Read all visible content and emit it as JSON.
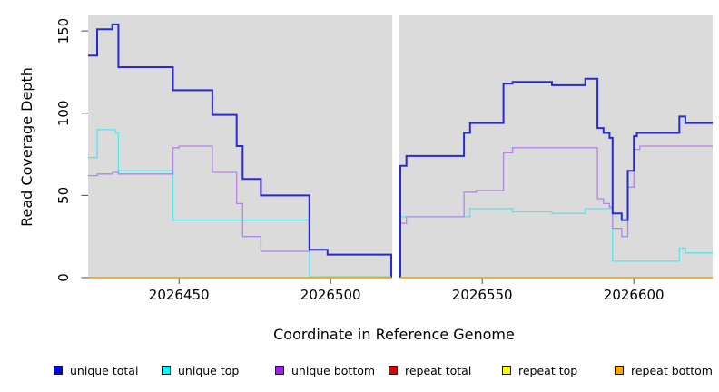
{
  "figure": {
    "x_axis_title": "Coordinate in Reference Genome",
    "y_axis_title": "Read Coverage Depth"
  },
  "chart_data": {
    "type": "line",
    "subtype": "step-after coverage plot",
    "title": "",
    "xlabel": "Coordinate in Reference Genome",
    "ylabel": "Read Coverage Depth",
    "xlim": [
      2026420,
      2026626
    ],
    "ylim": [
      0,
      160
    ],
    "x_ticks": [
      2026450,
      2026500,
      2026550,
      2026600
    ],
    "y_ticks": [
      0,
      50,
      100,
      150
    ],
    "grid": false,
    "panel_bg": "#DBDBDB",
    "tick_color": "#4a4a4a",
    "gap": {
      "x_start": 2026520,
      "x_end": 2026523,
      "fill": "#ffffff",
      "note": "white vertical band with no data"
    },
    "zero_overlap_segment": {
      "x_start": 2026493,
      "x_end": 2026520,
      "y": 0,
      "color": "#8CC98C",
      "note": "unique top at depth 0 blending with orange repeat bottom line (appears green)"
    },
    "series": [
      {
        "name": "unique top",
        "color": "#5BE3EB",
        "width": 1.3,
        "segments": [
          {
            "points": [
              [
                2026420,
                73
              ],
              [
                2026423,
                90
              ],
              [
                2026429,
                88
              ],
              [
                2026430,
                65
              ],
              [
                2026448,
                35
              ],
              [
                2026493,
                0
              ]
            ],
            "end_x": 2026520
          },
          {
            "points": [
              [
                2026523,
                0
              ],
              [
                2026523,
                37
              ],
              [
                2026546,
                42
              ],
              [
                2026560,
                40
              ],
              [
                2026573,
                39
              ],
              [
                2026584,
                42
              ],
              [
                2026593,
                10
              ],
              [
                2026615,
                18
              ],
              [
                2026617,
                15
              ]
            ],
            "end_x": 2026626
          }
        ]
      },
      {
        "name": "unique bottom",
        "color": "#B287E2",
        "width": 1.3,
        "segments": [
          {
            "points": [
              [
                2026420,
                62
              ],
              [
                2026423,
                63
              ],
              [
                2026428,
                64
              ],
              [
                2026430,
                63
              ],
              [
                2026448,
                79
              ],
              [
                2026450,
                80
              ],
              [
                2026461,
                64
              ],
              [
                2026469,
                45
              ],
              [
                2026471,
                25
              ],
              [
                2026477,
                16
              ],
              [
                2026493,
                17
              ],
              [
                2026499,
                14
              ],
              [
                2026520,
                0
              ]
            ],
            "end_x": 2026520
          },
          {
            "points": [
              [
                2026523,
                0
              ],
              [
                2026523,
                33
              ],
              [
                2026525,
                37
              ],
              [
                2026544,
                52
              ],
              [
                2026548,
                53
              ],
              [
                2026557,
                76
              ],
              [
                2026560,
                79
              ],
              [
                2026588,
                48
              ],
              [
                2026590,
                45
              ],
              [
                2026592,
                43
              ],
              [
                2026593,
                30
              ],
              [
                2026596,
                25
              ],
              [
                2026598,
                55
              ],
              [
                2026600,
                78
              ],
              [
                2026602,
                80
              ]
            ],
            "end_x": 2026626
          }
        ]
      },
      {
        "name": "unique total",
        "color": "#2A2AD4",
        "width": 2,
        "segments": [
          {
            "points": [
              [
                2026420,
                135
              ],
              [
                2026423,
                151
              ],
              [
                2026428,
                154
              ],
              [
                2026430,
                128
              ],
              [
                2026448,
                114
              ],
              [
                2026461,
                99
              ],
              [
                2026469,
                80
              ],
              [
                2026471,
                60
              ],
              [
                2026477,
                50
              ],
              [
                2026493,
                17
              ],
              [
                2026499,
                14
              ],
              [
                2026520,
                0
              ]
            ],
            "end_x": 2026520
          },
          {
            "points": [
              [
                2026523,
                0
              ],
              [
                2026523,
                68
              ],
              [
                2026525,
                74
              ],
              [
                2026544,
                88
              ],
              [
                2026546,
                94
              ],
              [
                2026557,
                118
              ],
              [
                2026560,
                119
              ],
              [
                2026573,
                117
              ],
              [
                2026584,
                121
              ],
              [
                2026588,
                91
              ],
              [
                2026590,
                88
              ],
              [
                2026592,
                85
              ],
              [
                2026593,
                39
              ],
              [
                2026596,
                35
              ],
              [
                2026598,
                65
              ],
              [
                2026600,
                86
              ],
              [
                2026601,
                88
              ],
              [
                2026615,
                98
              ],
              [
                2026617,
                94
              ]
            ],
            "end_x": 2026626
          }
        ]
      },
      {
        "name": "repeat total",
        "color": "#DD0000",
        "width": 1.3,
        "segments": [
          {
            "points": [
              [
                2026420,
                0
              ]
            ],
            "end_x": 2026520
          },
          {
            "points": [
              [
                2026523,
                0
              ]
            ],
            "end_x": 2026626
          }
        ]
      },
      {
        "name": "repeat top",
        "color": "#FFFF00",
        "width": 1.3,
        "segments": [
          {
            "points": [
              [
                2026420,
                0
              ]
            ],
            "end_x": 2026520
          },
          {
            "points": [
              [
                2026523,
                0
              ]
            ],
            "end_x": 2026626
          }
        ]
      },
      {
        "name": "repeat bottom",
        "color": "#FFA41E",
        "width": 1.8,
        "segments": [
          {
            "points": [
              [
                2026420,
                0
              ]
            ],
            "end_x": 2026520
          },
          {
            "points": [
              [
                2026523,
                0
              ]
            ],
            "end_x": 2026626
          }
        ]
      }
    ],
    "legend": {
      "position": "bottom",
      "items": [
        {
          "label": "unique total",
          "swatch_color": "#0000EE"
        },
        {
          "label": "unique top",
          "swatch_color": "#00FFFF"
        },
        {
          "label": "unique bottom",
          "swatch_color": "#A020F0"
        },
        {
          "label": "repeat total",
          "swatch_color": "#DD0000"
        },
        {
          "label": "repeat top",
          "swatch_color": "#FFFF00"
        },
        {
          "label": "repeat bottom",
          "swatch_color": "#FFA500"
        }
      ]
    }
  }
}
